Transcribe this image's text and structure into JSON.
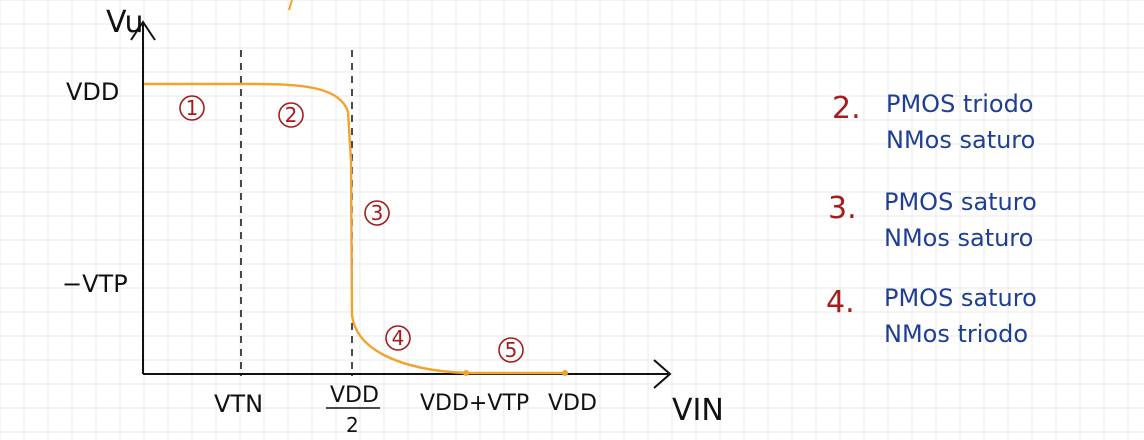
{
  "colors": {
    "background": "#ffffff",
    "grid": "#e8e8e8",
    "axis": "#111111",
    "curve": "#f2a22e",
    "region": "#a61c1c",
    "note_number": "#a61c1c",
    "note_text": "#1e3f94"
  },
  "axes": {
    "y_label": "Vu",
    "x_label": "VIN"
  },
  "y_ticks": {
    "vdd": "VDD",
    "vtp": "−VTP"
  },
  "x_ticks": {
    "vtn": "VTN",
    "vdd_half_num": "VDD",
    "vdd_half_den": "2",
    "vdd_plus_vtp": "VDD+VTP",
    "vdd": "VDD"
  },
  "regions": [
    "1",
    "2",
    "3",
    "4",
    "5"
  ],
  "notes": [
    {
      "number": "2.",
      "line1": "PMOS triodo",
      "line2": "NMos saturo"
    },
    {
      "number": "3.",
      "line1": "PMOS saturo",
      "line2": "NMos saturo"
    },
    {
      "number": "4.",
      "line1": "PMOS saturo",
      "line2": "NMos triodo"
    }
  ]
}
